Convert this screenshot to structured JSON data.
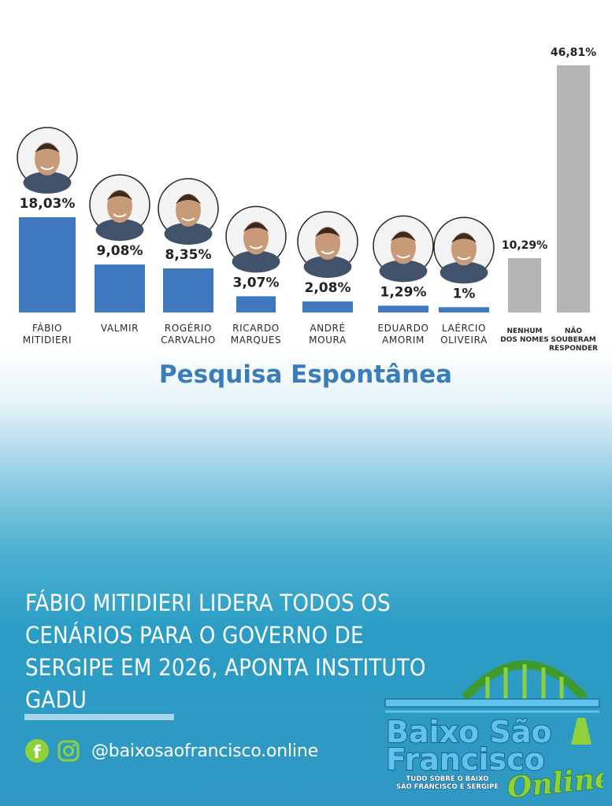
{
  "chart_data": {
    "type": "bar",
    "title": "Pesquisa Espontânea",
    "value_labels": [
      "18,03%",
      "9,08%",
      "8,35%",
      "3,07%",
      "2,08%",
      "1,29%",
      "1%",
      "10,29%",
      "46,81%"
    ],
    "values": [
      18.03,
      9.08,
      8.35,
      3.07,
      2.08,
      1.29,
      1,
      10.29,
      46.81
    ],
    "categories": [
      [
        "FÁBIO",
        "MITIDIERI"
      ],
      [
        "VALMIR"
      ],
      [
        "ROGÉRIO",
        "CARVALHO"
      ],
      [
        "RICARDO",
        "MARQUES"
      ],
      [
        "ANDRÉ",
        "MOURA"
      ],
      [
        "EDUARDO",
        "AMORIM"
      ],
      [
        "LAÉRCIO",
        "OLIVEIRA"
      ],
      [
        "NENHUM",
        "DOS NOMES"
      ],
      [
        "NÃO",
        "SOUBERAM",
        "RESPONDER"
      ]
    ],
    "bar_colors": [
      "#3f78bf",
      "#3f78bf",
      "#3f78bf",
      "#3f78bf",
      "#3f78bf",
      "#3f78bf",
      "#3f78bf",
      "#b5b5b5",
      "#b5b5b5"
    ],
    "candidate_photos": [
      true,
      true,
      true,
      true,
      true,
      true,
      true,
      false,
      false
    ],
    "grid": false,
    "legend": "none"
  },
  "headline": "FÁBIO MITIDIERI LIDERA TODOS OS CENÁRIOS PARA O GOVERNO DE SERGIPE EM 2026, APONTA INSTITUTO GADU",
  "social": {
    "facebook_icon": "facebook-icon",
    "instagram_icon": "instagram-icon",
    "handle": "@baixosaofrancisco.online"
  },
  "logo": {
    "line1": "Baixo São",
    "line2": "Francisco",
    "tagline1": "TUDO SOBRE O BAIXO",
    "tagline2": "SÃO FRANCISCO E SERGIPE",
    "script": "Online"
  },
  "colors": {
    "candidate_bar": "#3f78bf",
    "other_bar": "#b5b5b5",
    "title": "#3a7db8",
    "logo_green": "#3f9a2e",
    "logo_lime": "#8fd13a",
    "logo_blue": "#5ec4ec"
  }
}
